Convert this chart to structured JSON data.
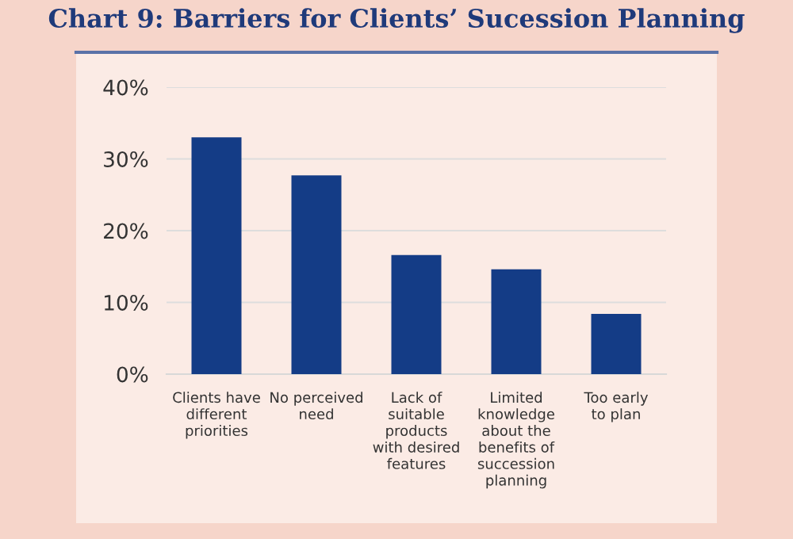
{
  "chart_data": {
    "type": "bar",
    "title": "Chart 9: Barriers for Clients’ Sucession Planning",
    "categories": [
      "Clients have\ndifferent\npriorities",
      "No perceived\nneed",
      "Lack of\nsuitable\nproducts\nwith desired\nfeatures",
      "Limited\nknowledge\nabout the\nbenefits of\nsuccession\nplanning",
      "Too early\nto plan"
    ],
    "values": [
      33,
      27.7,
      16.6,
      14.6,
      8.4
    ],
    "color": "#143c86",
    "ylim": [
      0,
      40
    ],
    "yticks": [
      {
        "value": 0,
        "label": "0%"
      },
      {
        "value": 10,
        "label": "10%"
      },
      {
        "value": 20,
        "label": "20%"
      },
      {
        "value": 30,
        "label": "30%"
      },
      {
        "value": 40,
        "label": "40%"
      }
    ],
    "grid": "y"
  }
}
